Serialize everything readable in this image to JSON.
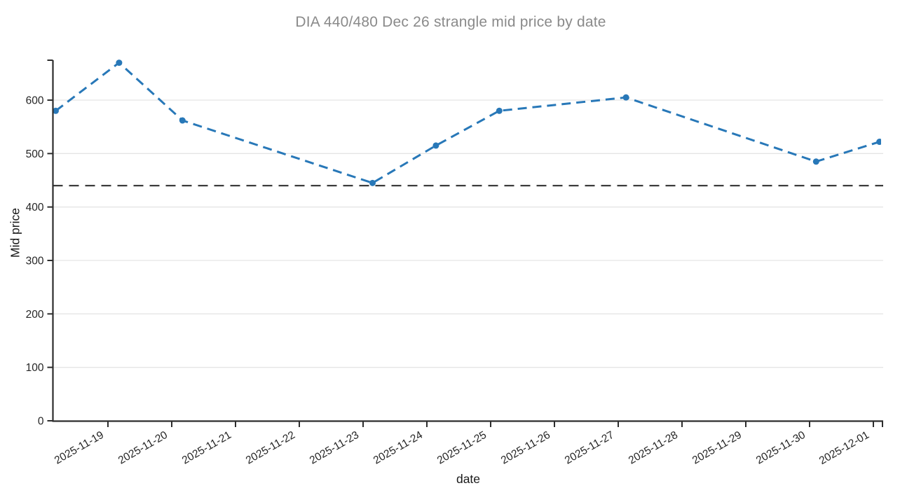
{
  "chart_data": {
    "type": "line",
    "title": "DIA 440/480 Dec 26 strangle mid price by date",
    "xlabel": "date",
    "ylabel": "Mid price",
    "series": [
      {
        "name": "strangle mid price",
        "x": [
          "2025-11-18",
          "2025-11-19",
          "2025-11-20",
          "2025-11-23",
          "2025-11-24",
          "2025-11-25",
          "2025-11-27",
          "2025-11-30",
          "2025-12-01"
        ],
        "values": [
          580,
          670,
          562,
          445,
          515,
          580,
          605,
          485,
          522
        ],
        "line_style": "dashed",
        "marker": "circle",
        "color": "#2878b8"
      }
    ],
    "reference_line": {
      "value": 440,
      "orientation": "horizontal",
      "style": "dashed",
      "color": "#3d3d3d"
    },
    "x_tick_labels": [
      "2025-11-19",
      "2025-11-20",
      "2025-11-21",
      "2025-11-22",
      "2025-11-23",
      "2025-11-24",
      "2025-11-25",
      "2025-11-26",
      "2025-11-27",
      "2025-11-28",
      "2025-11-29",
      "2025-11-30",
      "2025-12-01"
    ],
    "y_ticks": [
      0,
      100,
      200,
      300,
      400,
      500,
      600
    ],
    "ylim": [
      0,
      675
    ],
    "grid": "horizontal",
    "legend": "none",
    "colors": {
      "line": "#2878b8",
      "reference": "#3d3d3d",
      "gridline": "#e5e5e5",
      "axis": "#2d2d2d",
      "tick_label": "#262626",
      "title": "#8a8a8a",
      "background": "#ffffff"
    }
  }
}
